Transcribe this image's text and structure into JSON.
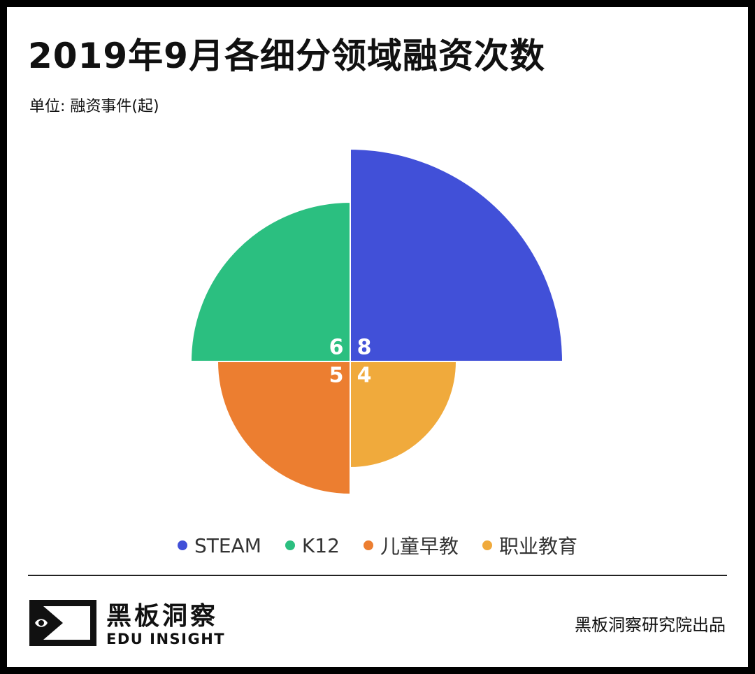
{
  "title": "2019年9月各细分领域融资次数",
  "unit_label": "单位: 融资事件(起)",
  "brand": {
    "name_cn": "黑板洞察",
    "name_en": "EDU INSIGHT",
    "logo_icon": "edu-insight-logo-icon"
  },
  "footer_credit": "黑板洞察研究院出品",
  "chart_data": {
    "type": "pie",
    "variant": "nightingale-rose-quadrants",
    "title": "2019年9月各细分领域融资次数",
    "unit": "单位: 融资事件(起)",
    "legend_position": "bottom",
    "categories": [
      "STEAM",
      "K12",
      "儿童早教",
      "职业教育"
    ],
    "values": [
      8,
      6,
      5,
      4
    ],
    "colors": [
      "#4150D8",
      "#2BBF80",
      "#EC7E30",
      "#F0AA3C"
    ]
  }
}
